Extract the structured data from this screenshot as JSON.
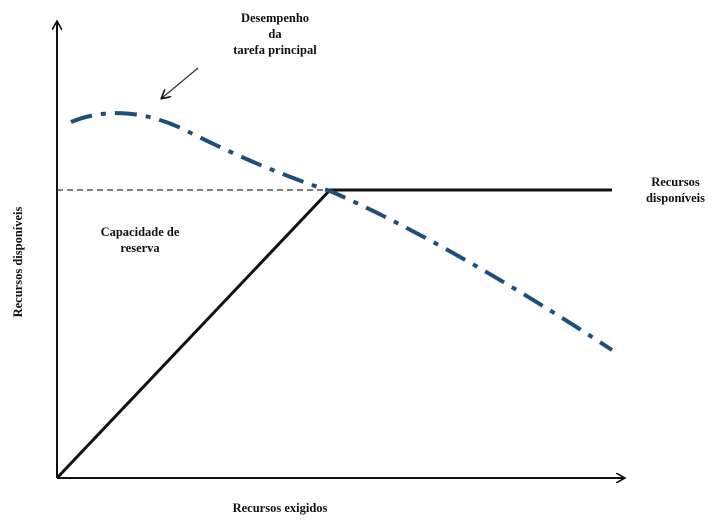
{
  "labels": {
    "performance": [
      "Desempenho",
      "da",
      "tarefa principal"
    ],
    "spare_capacity": [
      "Capacidade de",
      "reserva"
    ],
    "available_resources_line": [
      "Recursos",
      "disponíveis"
    ],
    "x_axis_title": "Recursos exigidos",
    "y_axis_title": "Recursos disponíveis"
  },
  "colors": {
    "axis": "#111111",
    "resource_line": "#111111",
    "performance_curve": "#1f4e79",
    "threshold": "#333333"
  }
}
